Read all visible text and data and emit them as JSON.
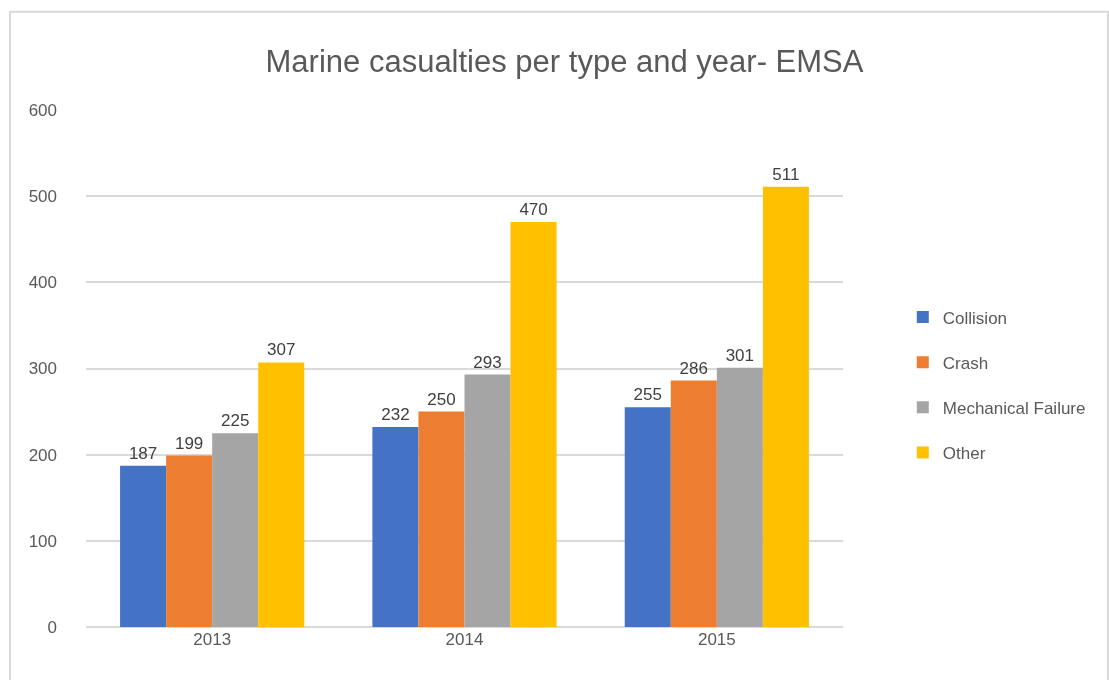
{
  "chart_data": {
    "type": "bar",
    "title": "Marine casualties per type and year- EMSA",
    "categories": [
      "2013",
      "2014",
      "2015"
    ],
    "series": [
      {
        "name": "Collision",
        "color": "#4472c4",
        "values": [
          187,
          232,
          255
        ]
      },
      {
        "name": "Crash",
        "color": "#ed7d31",
        "values": [
          199,
          250,
          286
        ]
      },
      {
        "name": "Mechanical Failure",
        "color": "#a5a5a5",
        "values": [
          225,
          293,
          301
        ]
      },
      {
        "name": "Other",
        "color": "#ffc000",
        "values": [
          307,
          470,
          511
        ]
      }
    ],
    "ylim": [
      0,
      600
    ],
    "yticks": [
      0,
      100,
      200,
      300,
      400,
      500,
      600
    ],
    "grid": "y",
    "legend": "right",
    "data_labels": true
  }
}
